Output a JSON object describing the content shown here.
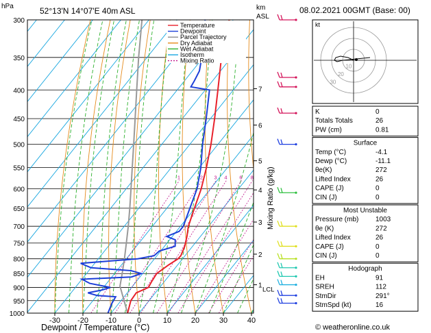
{
  "header": {
    "unit_hpa": "hPa",
    "location": "52°13'N  14°07'E  40m  ASL",
    "unit_km": "km",
    "unit_asl": "ASL",
    "datetime": "08.02.2021  00GMT  (Base: 00)"
  },
  "chart_data": {
    "type": "skew-t log-p sounding",
    "xlabel": "Dewpoint / Temperature (°C)",
    "ylabel_right": "Mixing Ratio (g/kg)",
    "x_ticks": [
      -30,
      -20,
      -10,
      0,
      10,
      20,
      30,
      40
    ],
    "pressure_levels": [
      300,
      350,
      400,
      450,
      500,
      550,
      600,
      650,
      700,
      750,
      800,
      850,
      900,
      950,
      1000
    ],
    "km_ticks": [
      {
        "label": "7",
        "p": 398
      },
      {
        "label": "6",
        "p": 462
      },
      {
        "label": "5",
        "p": 535
      },
      {
        "label": "4",
        "p": 603
      },
      {
        "label": "3",
        "p": 688
      },
      {
        "label": "2",
        "p": 785
      },
      {
        "label": "1",
        "p": 890
      }
    ],
    "lcl_label": "LCL",
    "lcl_p": 895,
    "mixing_ratio_labels": [
      "1",
      "2",
      "3",
      "4",
      "6",
      "8",
      "10",
      "15",
      "20",
      "25"
    ],
    "mixing_ratio_label_p": 582,
    "legend": [
      {
        "name": "Temperature",
        "color": "#e8202a",
        "dash": "none"
      },
      {
        "name": "Dewpoint",
        "color": "#1c3fd8",
        "dash": "none"
      },
      {
        "name": "Parcel Trajectory",
        "color": "#8c8c8c",
        "dash": "none"
      },
      {
        "name": "Dry Adiabat",
        "color": "#e58a1a",
        "dash": "none"
      },
      {
        "name": "Wet Adiabat",
        "color": "#2bb02b",
        "dash": "none"
      },
      {
        "name": "Isotherm",
        "color": "#19a7e0",
        "dash": "none"
      },
      {
        "name": "Mixing Ratio",
        "color": "#c0148c",
        "dash": "2,2"
      }
    ],
    "temperature_profile": [
      [
        1000,
        -4.1
      ],
      [
        950,
        -6.5
      ],
      [
        920,
        -6.8
      ],
      [
        900,
        -4.0
      ],
      [
        880,
        -4.5
      ],
      [
        850,
        -5.0
      ],
      [
        820,
        -3.2
      ],
      [
        800,
        -1.6
      ],
      [
        790,
        -1.5
      ],
      [
        760,
        -2.8
      ],
      [
        730,
        -4.8
      ],
      [
        700,
        -7.2
      ],
      [
        650,
        -10.2
      ],
      [
        600,
        -13.3
      ],
      [
        550,
        -17.5
      ],
      [
        500,
        -22.5
      ],
      [
        450,
        -28.5
      ],
      [
        400,
        -35.5
      ],
      [
        350,
        -43.5
      ],
      [
        300,
        -51.5
      ]
    ],
    "dewpoint_profile": [
      [
        1000,
        -11.1
      ],
      [
        960,
        -12.5
      ],
      [
        935,
        -13.0
      ],
      [
        930,
        -20.0
      ],
      [
        920,
        -24.0
      ],
      [
        910,
        -20.0
      ],
      [
        900,
        -17.5
      ],
      [
        885,
        -26.0
      ],
      [
        870,
        -30.0
      ],
      [
        862,
        -13.0
      ],
      [
        850,
        -10.5
      ],
      [
        840,
        -15.0
      ],
      [
        830,
        -30.0
      ],
      [
        815,
        -35.0
      ],
      [
        800,
        -16.0
      ],
      [
        790,
        -11.0
      ],
      [
        775,
        -10.5
      ],
      [
        760,
        -6.2
      ],
      [
        740,
        -8.0
      ],
      [
        730,
        -12.0
      ],
      [
        715,
        -9.0
      ],
      [
        700,
        -9.0
      ],
      [
        650,
        -11.8
      ],
      [
        600,
        -14.8
      ],
      [
        550,
        -19.5
      ],
      [
        500,
        -25.5
      ],
      [
        450,
        -31.5
      ],
      [
        400,
        -38.5
      ],
      [
        395,
        -46.0
      ],
      [
        385,
        -46.5
      ],
      [
        370,
        -47.5
      ],
      [
        350,
        -50.5
      ],
      [
        300,
        -60.0
      ]
    ],
    "parcel_profile": [
      [
        1000,
        -4.1
      ],
      [
        895,
        -14.5
      ],
      [
        850,
        -17.3
      ],
      [
        800,
        -20.7
      ],
      [
        750,
        -24.5
      ],
      [
        700,
        -28.6
      ],
      [
        650,
        -33.2
      ],
      [
        600,
        -38.3
      ],
      [
        550,
        -43.9
      ],
      [
        500,
        -50.0
      ],
      [
        450,
        -56.8
      ],
      [
        400,
        -64.4
      ],
      [
        350,
        -73.0
      ],
      [
        300,
        -82.5
      ]
    ],
    "wind_barbs": [
      {
        "p": 300,
        "color": "#d4145a"
      },
      {
        "p": 380,
        "color": "#d4145a"
      },
      {
        "p": 395,
        "color": "#d4145a"
      },
      {
        "p": 440,
        "color": "#d4145a"
      },
      {
        "p": 500,
        "color": "#2040e0"
      },
      {
        "p": 610,
        "color": "#30c040"
      },
      {
        "p": 700,
        "color": "#e0e020"
      },
      {
        "p": 760,
        "color": "#e0e020"
      },
      {
        "p": 800,
        "color": "#b8e020"
      },
      {
        "p": 830,
        "color": "#20c8b0"
      },
      {
        "p": 860,
        "color": "#20c8b0"
      },
      {
        "p": 890,
        "color": "#20b0e0"
      },
      {
        "p": 930,
        "color": "#2040e0"
      },
      {
        "p": 960,
        "color": "#2040e0"
      }
    ]
  },
  "hodograph": {
    "label": "kt",
    "ring_labels": [
      "10",
      "20",
      "30"
    ]
  },
  "indices": {
    "rows": [
      {
        "label": "K",
        "value": "0"
      },
      {
        "label": "Totals Totals",
        "value": "26"
      },
      {
        "label": "PW (cm)",
        "value": "0.81"
      }
    ]
  },
  "surface": {
    "title": "Surface",
    "rows": [
      {
        "label": "Temp (°C)",
        "value": "-4.1"
      },
      {
        "label": "Dewp (°C)",
        "value": "-11.1"
      },
      {
        "label": "θe(K)",
        "value": "272"
      },
      {
        "label": "Lifted Index",
        "value": "26"
      },
      {
        "label": "CAPE (J)",
        "value": "0"
      },
      {
        "label": "CIN (J)",
        "value": "0"
      }
    ]
  },
  "most_unstable": {
    "title": "Most Unstable",
    "rows": [
      {
        "label": "Pressure (mb)",
        "value": "1003"
      },
      {
        "label": "θe (K)",
        "value": "272"
      },
      {
        "label": "Lifted Index",
        "value": "26"
      },
      {
        "label": "CAPE (J)",
        "value": "0"
      },
      {
        "label": "CIN (J)",
        "value": "0"
      }
    ]
  },
  "hodograph_table": {
    "title": "Hodograph",
    "rows": [
      {
        "label": "EH",
        "value": "91"
      },
      {
        "label": "SREH",
        "value": "112"
      },
      {
        "label": "StmDir",
        "value": "291°"
      },
      {
        "label": "StmSpd (kt)",
        "value": "16"
      }
    ]
  },
  "footer": {
    "copyright": "© weatheronline.co.uk"
  }
}
